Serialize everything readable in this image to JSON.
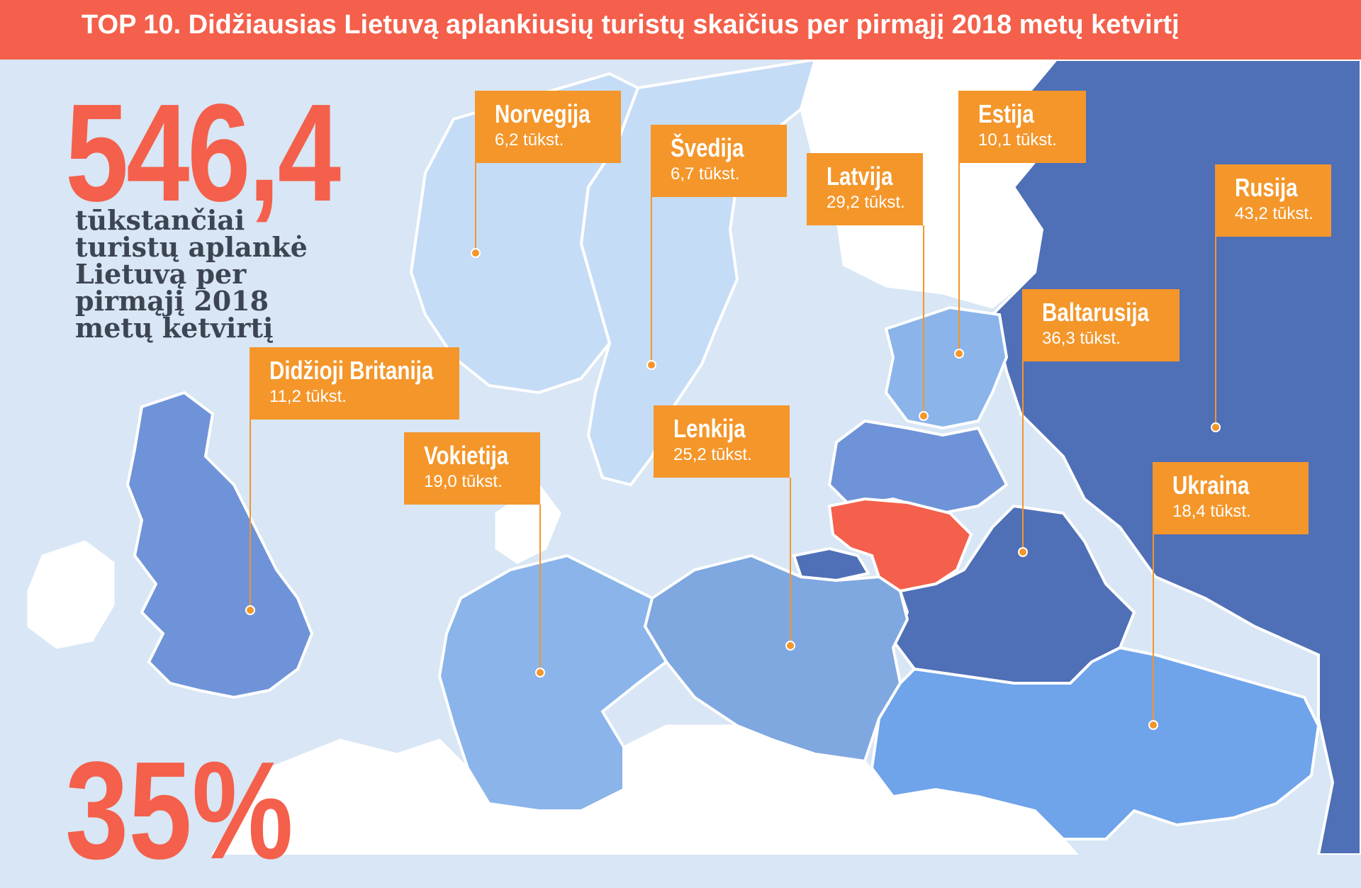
{
  "header": {
    "title": "TOP 10. Didžiausias Lietuvą aplankiusių turistų skaičius per pirmąjį 2018 metų ketvirtį"
  },
  "summary": {
    "total_value": "546,4",
    "total_caption": "tūkstančiai turistų aplankė Lietuvą per pirmąjį 2018 metų ketvirtį",
    "percent_value": "35%"
  },
  "colors": {
    "header": "#f4604b",
    "accent_number": "#f4604b",
    "label_box": "#f4962a",
    "lithuania": "#f4604b",
    "sea": "#d8e6f5",
    "country_lightest": "#c5dcf6",
    "country_light": "#8ab4ea",
    "country_mid": "#6f93d8",
    "country_dark": "#4f6fb7",
    "other_land": "#ffffff"
  },
  "countries": [
    {
      "name": "Norvegija",
      "value": "6,2 tūkst."
    },
    {
      "name": "Švedija",
      "value": "6,7 tūkst."
    },
    {
      "name": "Latvija",
      "value": "29,2 tūkst."
    },
    {
      "name": "Estija",
      "value": "10,1 tūkst."
    },
    {
      "name": "Rusija",
      "value": "43,2 tūkst."
    },
    {
      "name": "Baltarusija",
      "value": "36,3 tūkst."
    },
    {
      "name": "Didžioji Britanija",
      "value": "11,2 tūkst."
    },
    {
      "name": "Vokietija",
      "value": "19,0 tūkst."
    },
    {
      "name": "Lenkija",
      "value": "25,2 tūkst."
    },
    {
      "name": "Ukraina",
      "value": "18,4 tūkst."
    }
  ]
}
